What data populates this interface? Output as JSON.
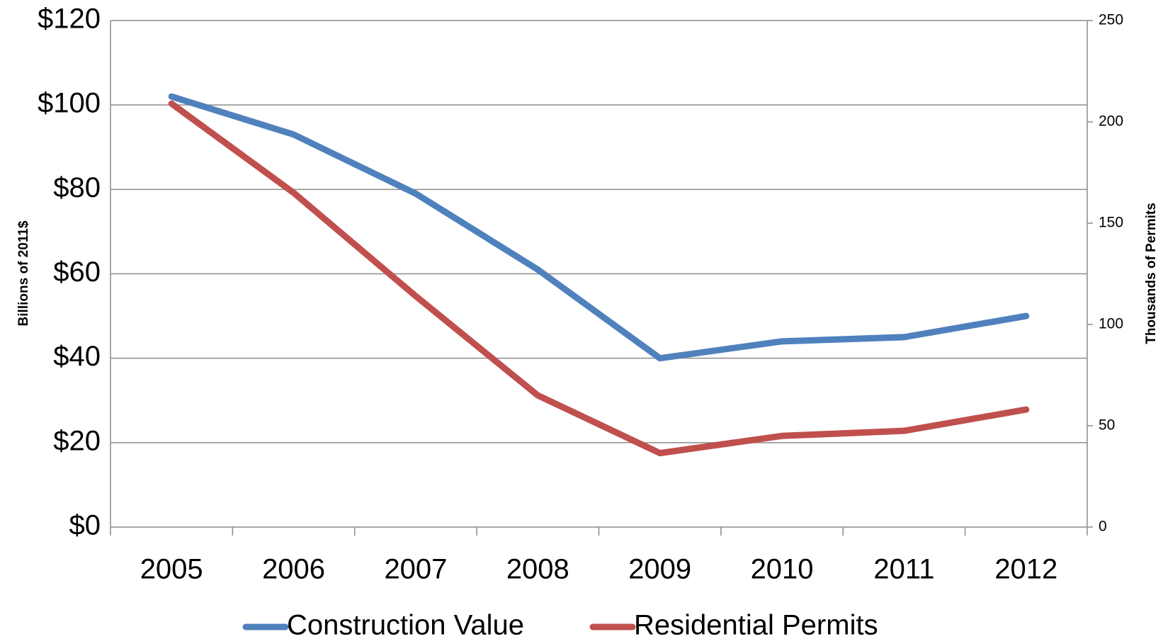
{
  "chart_data": {
    "type": "line",
    "categories": [
      "2005",
      "2006",
      "2007",
      "2008",
      "2009",
      "2010",
      "2011",
      "2012"
    ],
    "ylabel": "Billions of 2011$",
    "y2label": "Thousands of Permits",
    "ylim": [
      0,
      120
    ],
    "yticks": [
      {
        "value": 0,
        "label": "$0"
      },
      {
        "value": 20,
        "label": "$20"
      },
      {
        "value": 40,
        "label": "$40"
      },
      {
        "value": 60,
        "label": "$60"
      },
      {
        "value": 80,
        "label": "$80"
      },
      {
        "value": 100,
        "label": "$100"
      },
      {
        "value": 120,
        "label": "$120"
      }
    ],
    "y2lim": [
      0,
      250
    ],
    "y2ticks": [
      0,
      50,
      100,
      150,
      200,
      250
    ],
    "grid": true,
    "legend": "bottom",
    "series": [
      {
        "name": "Construction Value",
        "color": "#4f81bd",
        "values": [
          102,
          93,
          79,
          61,
          40,
          44,
          45,
          50
        ]
      },
      {
        "name": "Residential Permits",
        "color": "#c0504d",
        "axis": "y2",
        "values": [
          209,
          165,
          114,
          65,
          36.5,
          45,
          47.5,
          58
        ]
      }
    ]
  }
}
